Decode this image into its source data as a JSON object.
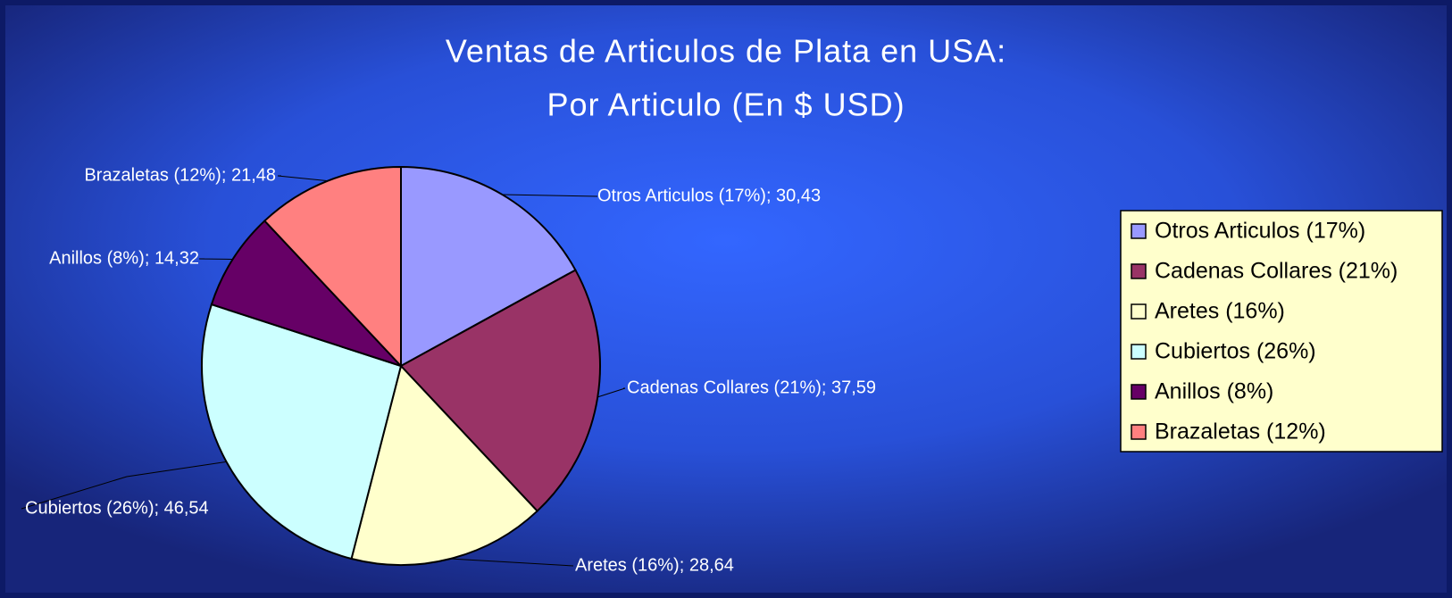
{
  "chart_data": {
    "type": "pie",
    "title": "Ventas de Articulos de Plata en USA:",
    "subtitle": "Por Articulo (En $ USD)",
    "categories": [
      "Otros Articulos (17%)",
      "Cadenas Collares (21%)",
      "Aretes (16%)",
      "Cubiertos (26%)",
      "Anillos (8%)",
      "Brazaletas (12%)"
    ],
    "values": [
      30.43,
      37.59,
      28.64,
      46.54,
      14.32,
      21.48
    ],
    "value_labels": [
      "Otros Articulos (17%); 30,43",
      "Cadenas Collares (21%); 37,59",
      "Aretes (16%); 28,64",
      "Cubiertos (26%); 46,54",
      "Anillos (8%); 14,32",
      "Brazaletas (12%); 21,48"
    ],
    "colors": [
      "#9999ff",
      "#993366",
      "#ffffcc",
      "#ccffff",
      "#660066",
      "#ff8080"
    ],
    "legend": "right"
  }
}
